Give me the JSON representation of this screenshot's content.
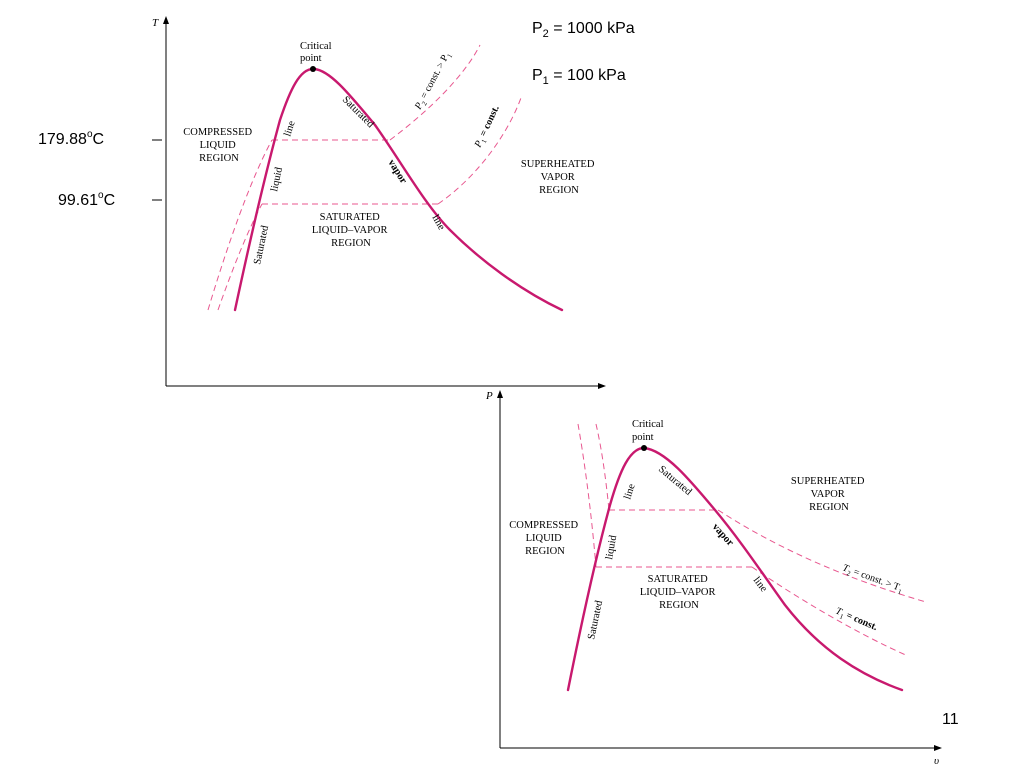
{
  "labels": {
    "p2": "P",
    "p2_sub": "2",
    "p2_rest": " = 1000 kPa",
    "p1": "P",
    "p1_sub": "1",
    "p1_rest": " = 100 kPa",
    "t_high": "179.88",
    "t_high_sup": "o",
    "t_high_unit": "C",
    "t_low": "99.61",
    "t_low_sup": "o",
    "t_low_unit": "C",
    "page_number": "11"
  },
  "tv_diagram": {
    "y_axis": "T",
    "critical_point": [
      "Critical",
      "point"
    ],
    "compressed": [
      "COMPRESSED",
      "LIQUID",
      "REGION"
    ],
    "superheated": [
      "SUPERHEATED",
      "VAPOR",
      "REGION"
    ],
    "saturated_mix": [
      "SATURATED",
      "LIQUID–VAPOR",
      "REGION"
    ],
    "sat_liquid_line": [
      "Saturated",
      "liquid",
      "line"
    ],
    "sat_vapor_line": [
      "Saturated",
      "vapor",
      "line"
    ],
    "p2_iso": "P",
    "p2_iso_sub": "2",
    "p2_iso_rest": " = const. > P",
    "p2_iso_sub2": "1",
    "p1_iso": "P",
    "p1_iso_sub": "1",
    "p1_iso_rest": " = const."
  },
  "pv_diagram": {
    "y_axis": "P",
    "x_axis": "υ",
    "critical_point": [
      "Critical",
      "point"
    ],
    "compressed": [
      "COMPRESSED",
      "LIQUID",
      "REGION"
    ],
    "superheated": [
      "SUPERHEATED",
      "VAPOR",
      "REGION"
    ],
    "saturated_mix": [
      "SATURATED",
      "LIQUID–VAPOR",
      "REGION"
    ],
    "sat_liquid_line": [
      "Saturated",
      "liquid",
      "line"
    ],
    "sat_vapor_line": [
      "Saturated",
      "vapor",
      "line"
    ],
    "t2_iso": "T",
    "t2_iso_sub": "2",
    "t2_iso_rest": " = const. > T",
    "t2_iso_sub2": "1",
    "t1_iso": "T",
    "t1_iso_sub": "1",
    "t1_iso_rest": " = const."
  },
  "colors": {
    "dome": "#c8196e",
    "isolines": "#e8578f"
  }
}
